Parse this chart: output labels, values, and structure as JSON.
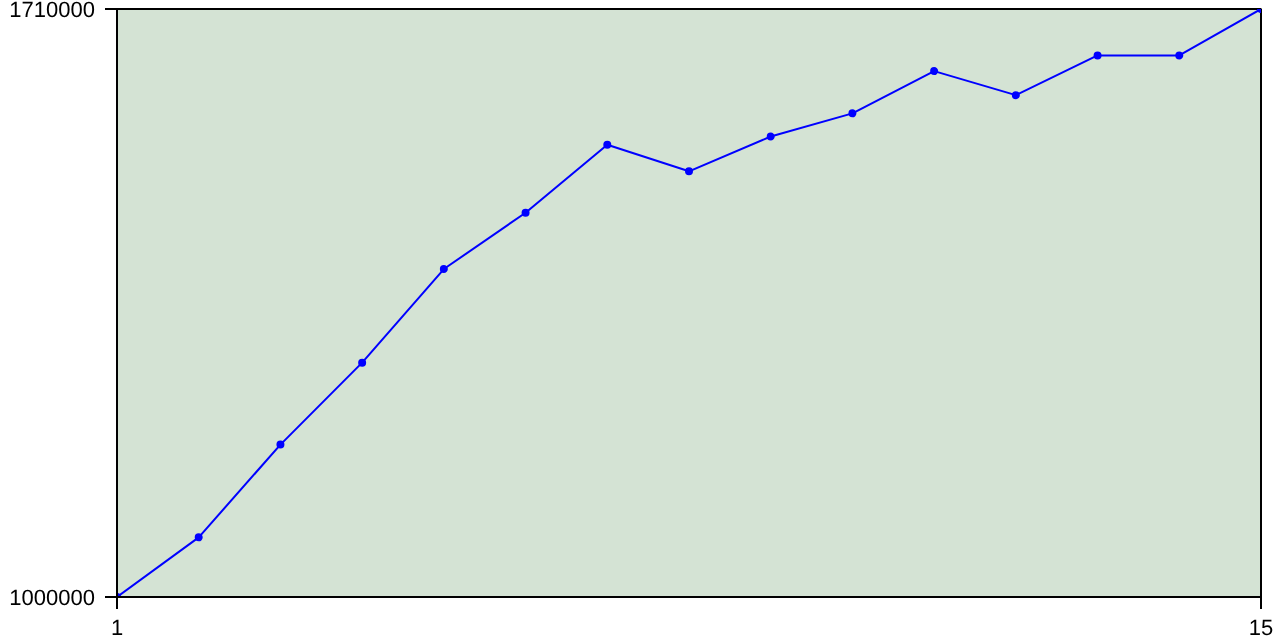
{
  "chart_data": {
    "type": "line",
    "x": [
      1,
      2,
      3,
      4,
      5,
      6,
      7,
      8,
      9,
      10,
      11,
      12,
      13,
      14,
      15
    ],
    "series": [
      {
        "color": "#0000ff",
        "values": [
          1000000,
          1072000,
          1184000,
          1283000,
          1396000,
          1464000,
          1546000,
          1514000,
          1556000,
          1584000,
          1635000,
          1606000,
          1654000,
          1654000,
          1710000
        ]
      }
    ],
    "xlim": [
      1,
      15
    ],
    "xticks": [
      1,
      15
    ],
    "ylim": [
      1000000,
      1710000
    ],
    "yticks": [
      1000000,
      1710000
    ],
    "marker": "circle",
    "line_style": "solid"
  }
}
